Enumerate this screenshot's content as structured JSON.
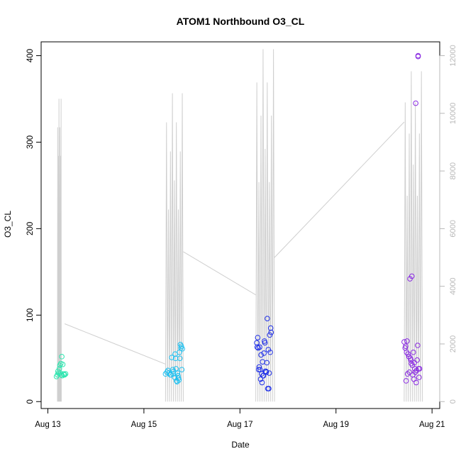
{
  "chart_data": {
    "type": "scatter",
    "title": "ATOM1 Northbound O3_CL",
    "xlabel": "Date",
    "ylabel": "O3_CL",
    "x_ticks": [
      {
        "label": "Aug 13",
        "day": 13
      },
      {
        "label": "Aug 15",
        "day": 15
      },
      {
        "label": "Aug 17",
        "day": 17
      },
      {
        "label": "Aug 19",
        "day": 19
      },
      {
        "label": "Aug 21",
        "day": 21
      }
    ],
    "y_ticks": [
      0,
      100,
      200,
      300,
      400
    ],
    "y2_ticks": [
      0,
      2000,
      4000,
      6000,
      8000,
      10000,
      12000
    ],
    "xlim_days": [
      12.86,
      21.16
    ],
    "ylim": [
      -8,
      416
    ],
    "y2lim": [
      -240,
      12480
    ],
    "grid": false,
    "colors": {
      "points_day13": "#2ee6b0",
      "points_day15": "#1ec0f0",
      "points_day17": "#2030e8",
      "points_day20": "#8a2be2",
      "secondary_line": "#cfcfcf",
      "right_axis": "#b8b8b8"
    },
    "series": [
      {
        "color": "#2ee6b0",
        "x_days": [
          13.18,
          13.2,
          13.22,
          13.24,
          13.27,
          13.29,
          13.31,
          13.33,
          13.35,
          13.37,
          13.25,
          13.28,
          13.3,
          13.21,
          13.26,
          13.34
        ],
        "y": [
          29,
          31,
          33,
          38,
          44,
          52,
          43,
          32,
          31,
          32,
          42,
          31,
          30,
          35,
          33,
          31
        ]
      },
      {
        "color": "#1ec0f0",
        "x_days": [
          15.45,
          15.48,
          15.5,
          15.52,
          15.55,
          15.58,
          15.6,
          15.62,
          15.64,
          15.65,
          15.67,
          15.68,
          15.7,
          15.72,
          15.74,
          15.75,
          15.76,
          15.77,
          15.78,
          15.79,
          15.8,
          15.66,
          15.69,
          15.71,
          15.73,
          15.56,
          15.61
        ],
        "y": [
          32,
          34,
          36,
          33,
          31,
          51,
          37,
          35,
          28,
          55,
          38,
          24,
          33,
          27,
          57,
          50,
          66,
          62,
          64,
          37,
          61,
          50,
          23,
          30,
          25,
          31,
          32
        ]
      },
      {
        "color": "#2030e8",
        "x_days": [
          17.35,
          17.37,
          17.38,
          17.4,
          17.41,
          17.42,
          17.44,
          17.45,
          17.47,
          17.48,
          17.5,
          17.52,
          17.53,
          17.55,
          17.56,
          17.57,
          17.58,
          17.6,
          17.61,
          17.62,
          17.63,
          17.64,
          17.65,
          17.43,
          17.46,
          17.49,
          17.51,
          17.54,
          17.59,
          17.39,
          17.36
        ],
        "y": [
          68,
          74,
          62,
          40,
          63,
          37,
          54,
          32,
          46,
          30,
          56,
          68,
          35,
          34,
          45,
          96,
          15,
          15,
          33,
          77,
          57,
          85,
          80,
          26,
          22,
          30,
          70,
          35,
          60,
          37,
          63
        ]
      },
      {
        "color": "#8a2be2",
        "x_days": [
          20.42,
          20.44,
          20.45,
          20.47,
          20.48,
          20.5,
          20.52,
          20.53,
          20.55,
          20.56,
          20.57,
          20.58,
          20.6,
          20.61,
          20.62,
          20.63,
          20.64,
          20.65,
          20.66,
          20.67,
          20.68,
          20.69,
          20.7,
          20.72,
          20.73,
          20.74,
          20.46,
          20.49,
          20.54,
          20.59,
          20.71,
          20.71
        ],
        "y": [
          69,
          62,
          64,
          57,
          70,
          55,
          52,
          34,
          50,
          48,
          44,
          145,
          31,
          57,
          26,
          45,
          38,
          34,
          345,
          22,
          36,
          48,
          65,
          38,
          28,
          38,
          24,
          32,
          142,
          42,
          399,
          400
        ]
      }
    ],
    "secondary_line": {
      "color": "#cfcfcf",
      "segments": [
        {
          "x_days": [
            13.2,
            13.28
          ],
          "y2": [
            0,
            11000
          ]
        },
        {
          "x_days": [
            15.45,
            15.82
          ],
          "y2": [
            0,
            11200
          ]
        },
        {
          "x_days": [
            17.33,
            17.72
          ],
          "y2": [
            0,
            12800
          ]
        },
        {
          "x_days": [
            20.42,
            20.8
          ],
          "y2": [
            0,
            12000
          ]
        }
      ],
      "connectors": [
        {
          "x_days": [
            13.35,
            15.45
          ],
          "y2": [
            2700,
            1300
          ]
        },
        {
          "x_days": [
            15.82,
            17.33
          ],
          "y2": [
            5200,
            3700
          ]
        },
        {
          "x_days": [
            17.72,
            20.42
          ],
          "y2": [
            5000,
            9700
          ]
        }
      ]
    }
  }
}
